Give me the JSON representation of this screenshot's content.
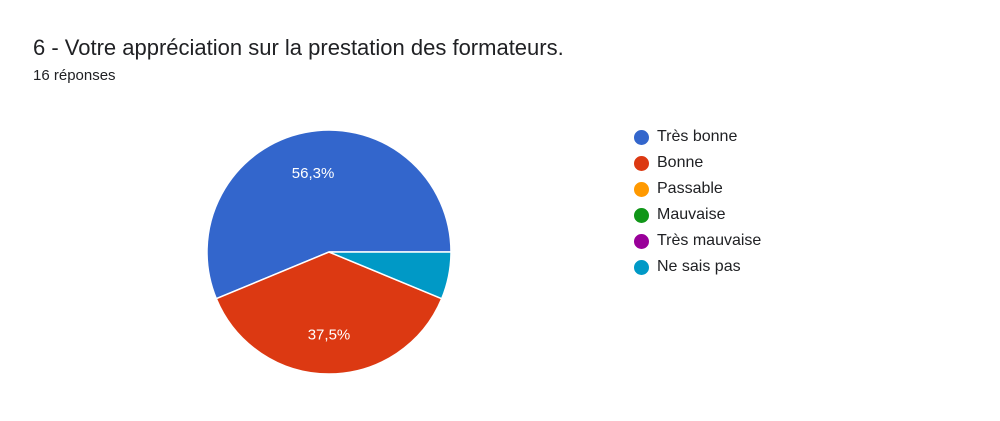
{
  "title": "6 - Votre appréciation sur la prestation des formateurs.",
  "subtitle": "16 réponses",
  "chart_data": {
    "type": "pie",
    "title": "6 - Votre appréciation sur la prestation des formateurs.",
    "subtitle": "16 réponses",
    "legend_position": "right",
    "categories": [
      "Très bonne",
      "Bonne",
      "Passable",
      "Mauvaise",
      "Très mauvaise",
      "Ne sais pas"
    ],
    "counts": [
      9,
      6,
      0,
      0,
      0,
      1
    ],
    "values": [
      56.3,
      37.5,
      0,
      0,
      0,
      6.3
    ],
    "labels": [
      "56,3%",
      "37,5%",
      "",
      "",
      "",
      ""
    ],
    "colors": [
      "#3366cc",
      "#dc3912",
      "#ff9900",
      "#109618",
      "#990099",
      "#0099c6"
    ]
  }
}
